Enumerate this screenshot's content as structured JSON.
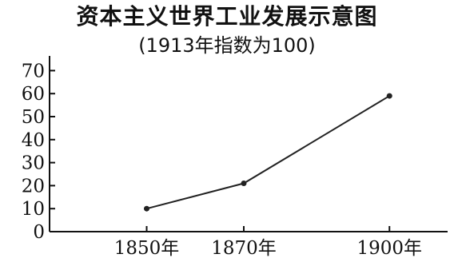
{
  "chart_data": {
    "type": "line",
    "title": "资本主义世界工业发展示意图",
    "subtitle": "(1913年指数为100)",
    "categories": [
      "1850年",
      "1870年",
      "1900年"
    ],
    "x": [
      1850,
      1870,
      1900
    ],
    "series": [
      {
        "values": [
          10,
          21,
          59
        ]
      }
    ],
    "yticks": [
      0,
      10,
      20,
      30,
      40,
      50,
      60,
      70
    ],
    "ylim": [
      0,
      75
    ],
    "xlim": [
      1830,
      1910
    ],
    "xlabel": "",
    "ylabel": "",
    "grid": false,
    "colors": {
      "line": "#222222",
      "axis": "#111111"
    }
  }
}
